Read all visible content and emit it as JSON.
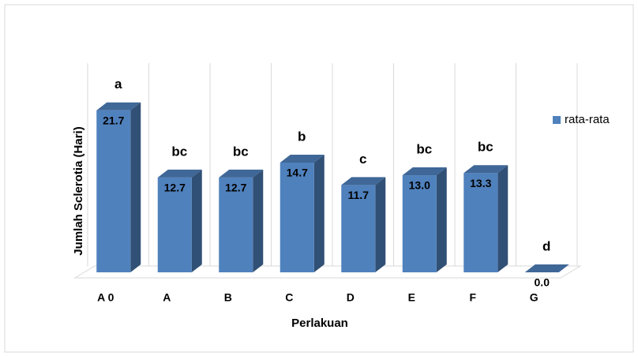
{
  "chart_data": {
    "type": "bar3d",
    "xlabel": "Perlakuan",
    "ylabel": "Jumlah Sclerotia (Hari)",
    "categories": [
      "A 0",
      "A",
      "B",
      "C",
      "D",
      "E",
      "F",
      "G"
    ],
    "series": [
      {
        "name": "rata-rata",
        "color": "#4f81bd",
        "values": [
          21.7,
          12.7,
          12.7,
          14.7,
          11.7,
          13.0,
          13.3,
          0.0
        ],
        "value_labels": [
          "21.7",
          "12.7",
          "12.7",
          "14.7",
          "11.7",
          "13.0",
          "13.3",
          "0.0"
        ]
      }
    ],
    "annotations": [
      "a",
      "bc",
      "bc",
      "b",
      "c",
      "bc",
      "bc",
      "d"
    ],
    "ylim": [
      0,
      24
    ],
    "legend": "right"
  }
}
